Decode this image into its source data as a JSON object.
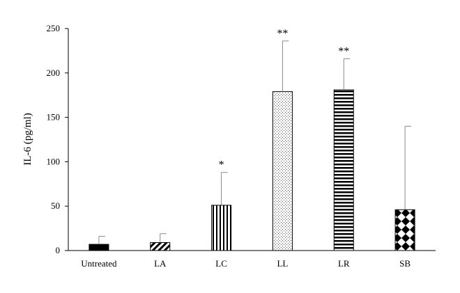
{
  "chart_data": {
    "type": "bar",
    "title": "",
    "xlabel": "",
    "ylabel": "IL-6 (pg/ml)",
    "ylim": [
      0,
      250
    ],
    "yticks": [
      0,
      50,
      100,
      150,
      200,
      250
    ],
    "grid": false,
    "legend": "none",
    "categories": [
      "Untreated",
      "LA",
      "LC",
      "LL",
      "LR",
      "SB"
    ],
    "values": [
      7,
      9,
      51,
      179,
      181,
      46
    ],
    "errors": [
      9,
      10,
      37,
      57,
      35,
      94
    ],
    "significance": [
      "",
      "",
      "*",
      "**",
      "**",
      ""
    ],
    "patterns": [
      "solid",
      "diagonal-stripes",
      "vertical-stripes",
      "dots",
      "horizontal-stripes",
      "checker"
    ],
    "colors": {
      "bar": "#000000",
      "axis": "#000000",
      "error": "#888888",
      "background": "#ffffff"
    }
  }
}
